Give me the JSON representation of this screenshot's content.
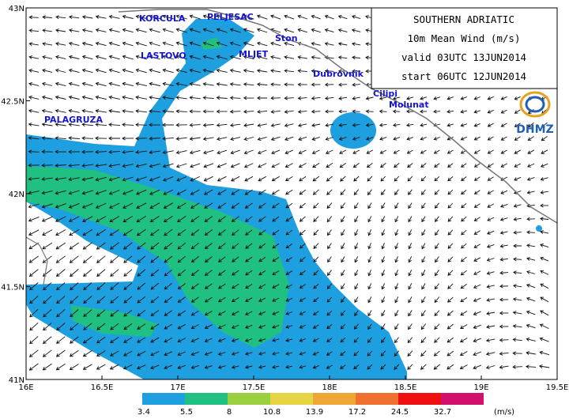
{
  "title_box": {
    "lines": [
      "SOUTHERN ADRIATIC",
      "10m  Mean Wind (m/s)",
      "valid 03UTC 13JUN2014",
      "start 06UTC 12JUN2014"
    ]
  },
  "logo": {
    "text": "DHMZ"
  },
  "places": [
    "KORCULA",
    "PELJESAC",
    "Ston",
    "LASTOVO",
    "MLJET",
    "Dubrovnik",
    "Cilipi",
    "Molunat",
    "PALAGRUZA"
  ],
  "axes": {
    "x_labels": [
      "16E",
      "16.5E",
      "17E",
      "17.5E",
      "18E",
      "18.5E",
      "19E",
      "19.5E"
    ],
    "y_labels": [
      "41N",
      "41.5N",
      "42N",
      "42.5N",
      "43N"
    ]
  },
  "colorbar": {
    "labels": [
      "3.4",
      "5.5",
      "8",
      "10.8",
      "13.9",
      "17.2",
      "24.5",
      "32.7"
    ],
    "colors": [
      "#1e9fe0",
      "#20c080",
      "#9ad040",
      "#e6d444",
      "#f0a634",
      "#f07030",
      "#ee1010",
      "#d0106a"
    ],
    "unit": "(m/s)"
  }
}
